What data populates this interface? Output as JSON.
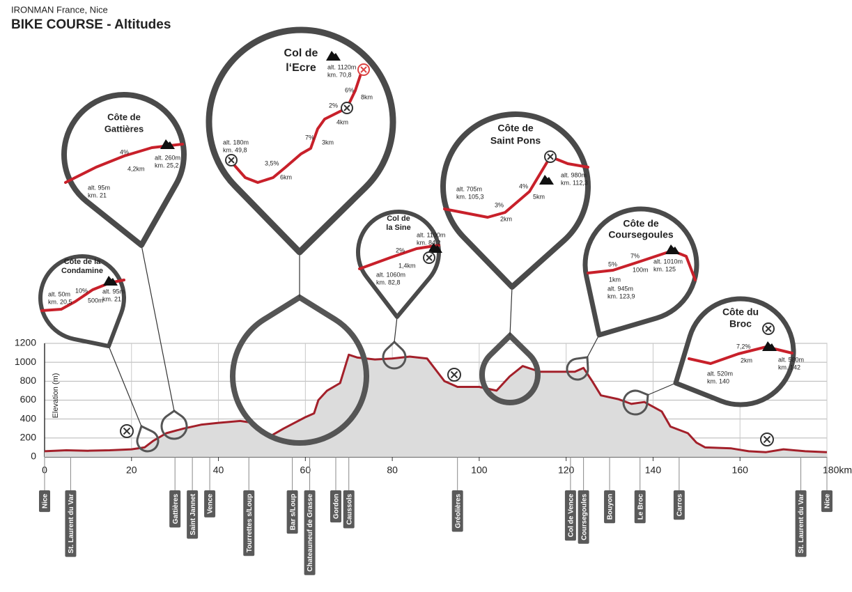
{
  "header": {
    "subtitle": "IRONMAN France, Nice",
    "title": "BIKE COURSE - Altitudes"
  },
  "chart_data": {
    "type": "line",
    "ylabel": "Elevation (m)",
    "x": [
      0,
      5,
      10,
      15,
      20,
      23,
      25,
      28,
      32,
      36,
      40,
      45,
      48,
      52,
      55,
      60,
      62,
      63,
      65,
      68,
      70,
      72,
      76,
      80,
      84,
      88,
      92,
      95,
      100,
      104,
      107,
      110,
      114,
      118,
      122,
      124,
      126,
      128,
      132,
      135,
      138,
      142,
      144,
      148,
      150,
      152,
      158,
      162,
      166,
      170,
      175,
      180
    ],
    "values": [
      60,
      70,
      65,
      70,
      80,
      100,
      170,
      250,
      300,
      340,
      360,
      380,
      360,
      220,
      300,
      420,
      460,
      600,
      700,
      780,
      1080,
      1050,
      1030,
      1040,
      1060,
      1040,
      800,
      740,
      740,
      700,
      850,
      960,
      900,
      900,
      900,
      940,
      800,
      650,
      610,
      560,
      580,
      480,
      320,
      250,
      150,
      100,
      90,
      60,
      50,
      80,
      60,
      50
    ],
    "color": "#a3202a",
    "fill": "#dcdcdc",
    "xlim": [
      0,
      180
    ],
    "ylim": [
      0,
      1200
    ],
    "xticks": [
      0,
      20,
      40,
      60,
      80,
      100,
      120,
      140,
      160,
      {
        "value": 180,
        "label": "180km"
      }
    ],
    "yticks": [
      0,
      200,
      400,
      600,
      800,
      1000,
      1200
    ],
    "grid": true,
    "towns": [
      {
        "name": "Nice",
        "km": 0
      },
      {
        "name": "St. Laurent du Var",
        "km": 6
      },
      {
        "name": "Gattières",
        "km": 30
      },
      {
        "name": "Saint Jannet",
        "km": 34
      },
      {
        "name": "Vence",
        "km": 38
      },
      {
        "name": "Tourrettes s/Loup",
        "km": 47
      },
      {
        "name": "Bar s/Loup",
        "km": 57
      },
      {
        "name": "Chateauneuf de Grasse",
        "km": 61
      },
      {
        "name": "Gordon",
        "km": 67
      },
      {
        "name": "Caussols",
        "km": 70
      },
      {
        "name": "Gréolières",
        "km": 95
      },
      {
        "name": "Col de Vence",
        "km": 121
      },
      {
        "name": "Coursegoules",
        "km": 124
      },
      {
        "name": "Bouyon",
        "km": 130
      },
      {
        "name": "Le Broc",
        "km": 137
      },
      {
        "name": "Carros",
        "km": 146
      },
      {
        "name": "St. Laurent du Var",
        "km": 174
      },
      {
        "name": "Nice",
        "km": 180
      }
    ],
    "callouts": [
      {
        "title": [
          "Côte de la",
          "Condamine"
        ],
        "labels": [
          "alt. 50m",
          "km. 20,5",
          "10%",
          "500m",
          "alt. 95m",
          "km. 21"
        ]
      },
      {
        "title": [
          "Côte de",
          "Gattières"
        ],
        "labels": [
          "alt. 95m",
          "km. 21",
          "4%",
          "4,2km",
          "alt. 260m",
          "km. 25,2"
        ]
      },
      {
        "title": [
          "Col de",
          "l‘Ecre"
        ],
        "labels": [
          "alt. 180m",
          "km. 49,8",
          "3,5%",
          "6km",
          "7%",
          "3km",
          "2%",
          "4km",
          "6%",
          "8km",
          "alt. 1120m",
          "km. 70,8"
        ]
      },
      {
        "title": [
          "Col de",
          "la Sine"
        ],
        "labels": [
          "alt. 1060m",
          "km. 82,8",
          "2%",
          "1,4km",
          "alt. 1100m",
          "km. 84,2"
        ]
      },
      {
        "title": [
          "Côte de",
          "Saint Pons"
        ],
        "labels": [
          "alt. 705m",
          "km. 105,3",
          "3%",
          "2km",
          "4%",
          "5km",
          "alt. 980m",
          "km. 112,3"
        ]
      },
      {
        "title": [
          "Côte de",
          "Coursegoules"
        ],
        "labels": [
          "5%",
          "1km",
          "7%",
          "100m",
          "alt. 1010m",
          "km. 125",
          "alt. 945m",
          "km. 123,9"
        ]
      },
      {
        "title": [
          "Côte du",
          "Broc"
        ],
        "labels": [
          "7,2%",
          "2km",
          "alt. 520m",
          "km. 140",
          "alt. 580m",
          "km. 142"
        ]
      }
    ]
  }
}
